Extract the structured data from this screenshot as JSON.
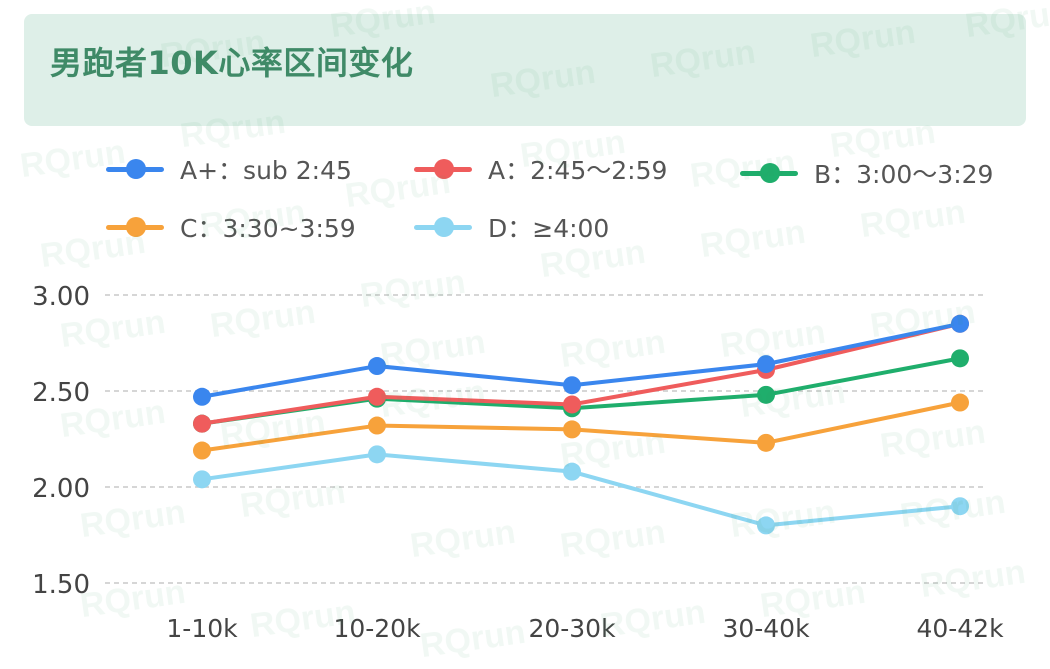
{
  "chart_data": {
    "type": "line",
    "title": "男跑者10K心率区间变化",
    "categories": [
      "1-10k",
      "10-20k",
      "20-30k",
      "30-40k",
      "40-42k"
    ],
    "ylim": [
      1.5,
      3.0
    ],
    "yticks": [
      "3.00",
      "2.50",
      "2.00",
      "1.50"
    ],
    "ytick_values": [
      3.0,
      2.5,
      2.0,
      1.5
    ],
    "grid": true,
    "legend_position": "top",
    "series": [
      {
        "name": "A+：sub 2:45",
        "color": "#3a86ee",
        "values": [
          2.47,
          2.63,
          2.53,
          2.64,
          2.85
        ]
      },
      {
        "name": "A：2:45～2:59",
        "color": "#ef5c5c",
        "values": [
          2.33,
          2.47,
          2.43,
          2.61,
          2.85
        ]
      },
      {
        "name": "B：3:00～3:29",
        "color": "#1fae6c",
        "values": [
          2.33,
          2.46,
          2.41,
          2.48,
          2.67
        ]
      },
      {
        "name": "C：3:30~3:59",
        "color": "#f7a23b",
        "values": [
          2.19,
          2.32,
          2.3,
          2.23,
          2.44
        ]
      },
      {
        "name": "D：≥4:00",
        "color": "#8dd6f2",
        "values": [
          2.04,
          2.17,
          2.08,
          1.8,
          1.9
        ]
      }
    ]
  },
  "watermark": "RQrun"
}
